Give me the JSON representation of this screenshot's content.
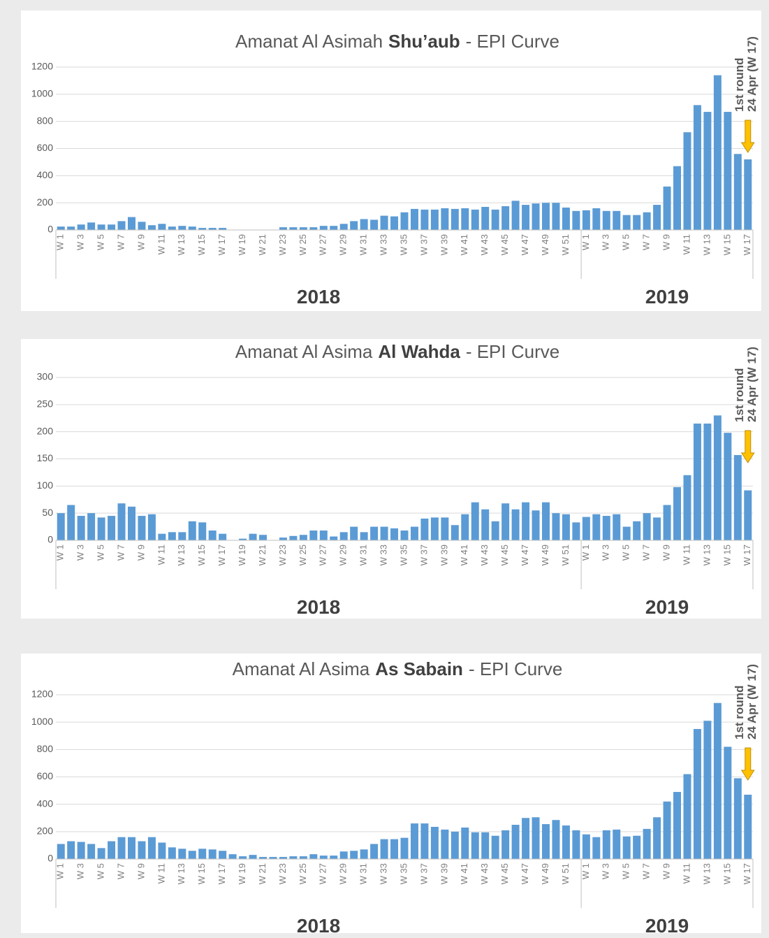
{
  "chart_data": [
    {
      "type": "bar",
      "title": [
        "Amanat Al Asimah",
        "Shu’aub",
        "- EPI Curve"
      ],
      "color": "#5b9bd5",
      "grid": true,
      "annotation": [
        "1st round",
        "24 Apr (W 17)"
      ],
      "groups": [
        "2018",
        "2019"
      ],
      "categories": [
        "W 1",
        null,
        "W 3",
        null,
        "W 5",
        null,
        "W 7",
        null,
        "W 9",
        null,
        "W 11",
        null,
        "W 13",
        null,
        "W 15",
        null,
        "W 17",
        null,
        "W 19",
        null,
        "W 21",
        null,
        "W 23",
        null,
        "W 25",
        null,
        "W 27",
        null,
        "W 29",
        null,
        "W 31",
        null,
        "W 33",
        null,
        "W 35",
        null,
        "W 37",
        null,
        "W 39",
        null,
        "W 41",
        null,
        "W 43",
        null,
        "W 45",
        null,
        "W 47",
        null,
        "W 49",
        null,
        "W 51",
        null,
        "W 1",
        null,
        "W 3",
        null,
        "W 5",
        null,
        "W 7",
        null,
        "W 9",
        null,
        "W 11",
        null,
        "W 13",
        null,
        "W 15",
        null,
        "W 17"
      ],
      "values": [
        25,
        25,
        40,
        55,
        40,
        40,
        65,
        95,
        60,
        35,
        45,
        25,
        30,
        25,
        15,
        15,
        15,
        0,
        0,
        0,
        0,
        0,
        20,
        20,
        20,
        20,
        30,
        30,
        45,
        65,
        80,
        75,
        105,
        100,
        130,
        155,
        150,
        150,
        160,
        155,
        160,
        150,
        170,
        150,
        175,
        215,
        185,
        195,
        200,
        200,
        165,
        140,
        145,
        160,
        140,
        140,
        110,
        110,
        130,
        185,
        320,
        470,
        720,
        920,
        870,
        1140,
        870,
        560,
        520
      ],
      "ylim": [
        0,
        1200
      ],
      "yticks": [
        0,
        200,
        400,
        600,
        800,
        1000,
        1200
      ]
    },
    {
      "type": "bar",
      "title": [
        "Amanat Al Asima",
        "Al Wahda",
        "- EPI Curve"
      ],
      "color": "#5b9bd5",
      "grid": true,
      "annotation": [
        "1st round",
        "24 Apr (W 17)"
      ],
      "groups": [
        "2018",
        "2019"
      ],
      "categories": [
        "W 1",
        null,
        "W 3",
        null,
        "W 5",
        null,
        "W 7",
        null,
        "W 9",
        null,
        "W 11",
        null,
        "W 13",
        null,
        "W 15",
        null,
        "W 17",
        null,
        "W 19",
        null,
        "W 21",
        null,
        "W 23",
        null,
        "W 25",
        null,
        "W 27",
        null,
        "W 29",
        null,
        "W 31",
        null,
        "W 33",
        null,
        "W 35",
        null,
        "W 37",
        null,
        "W 39",
        null,
        "W 41",
        null,
        "W 43",
        null,
        "W 45",
        null,
        "W 47",
        null,
        "W 49",
        null,
        "W 51",
        null,
        "W 1",
        null,
        "W 3",
        null,
        "W 5",
        null,
        "W 7",
        null,
        "W 9",
        null,
        "W 11",
        null,
        "W 13",
        null,
        "W 15",
        null,
        "W 17"
      ],
      "values": [
        50,
        65,
        45,
        50,
        42,
        45,
        68,
        62,
        45,
        48,
        12,
        15,
        15,
        35,
        33,
        18,
        12,
        0,
        3,
        12,
        10,
        0,
        5,
        8,
        10,
        18,
        18,
        7,
        15,
        25,
        15,
        25,
        25,
        22,
        18,
        25,
        40,
        42,
        42,
        28,
        48,
        70,
        57,
        35,
        68,
        57,
        70,
        55,
        70,
        50,
        48,
        33,
        43,
        48,
        45,
        48,
        25,
        35,
        50,
        42,
        65,
        98,
        120,
        215,
        215,
        230,
        198,
        157,
        92
      ],
      "ylim": [
        0,
        300
      ],
      "yticks": [
        0,
        50,
        100,
        150,
        200,
        250,
        300
      ]
    },
    {
      "type": "bar",
      "title": [
        "Amanat Al Asima",
        "As Sabain",
        "- EPI Curve"
      ],
      "color": "#5b9bd5",
      "grid": true,
      "annotation": [
        "1st round",
        "24 Apr (W 17)"
      ],
      "groups": [
        "2018",
        "2019"
      ],
      "categories": [
        "W 1",
        null,
        "W 3",
        null,
        "W 5",
        null,
        "W 7",
        null,
        "W 9",
        null,
        "W 11",
        null,
        "W 13",
        null,
        "W 15",
        null,
        "W 17",
        null,
        "W 19",
        null,
        "W 21",
        null,
        "W 23",
        null,
        "W 25",
        null,
        "W 27",
        null,
        "W 29",
        null,
        "W 31",
        null,
        "W 33",
        null,
        "W 35",
        null,
        "W 37",
        null,
        "W 39",
        null,
        "W 41",
        null,
        "W 43",
        null,
        "W 45",
        null,
        "W 47",
        null,
        "W 49",
        null,
        "W 51",
        null,
        "W 1",
        null,
        "W 3",
        null,
        "W 5",
        null,
        "W 7",
        null,
        "W 9",
        null,
        "W 11",
        null,
        "W 13",
        null,
        "W 15",
        null,
        "W 17"
      ],
      "values": [
        110,
        130,
        125,
        110,
        80,
        130,
        160,
        160,
        130,
        160,
        120,
        85,
        75,
        60,
        75,
        70,
        60,
        35,
        20,
        30,
        15,
        15,
        15,
        20,
        20,
        35,
        25,
        25,
        55,
        60,
        70,
        110,
        145,
        145,
        155,
        260,
        260,
        235,
        215,
        200,
        230,
        195,
        195,
        170,
        210,
        250,
        300,
        305,
        255,
        285,
        245,
        210,
        180,
        160,
        210,
        215,
        165,
        170,
        220,
        305,
        420,
        490,
        620,
        950,
        1010,
        1140,
        820,
        590,
        470
      ],
      "ylim": [
        0,
        1200
      ],
      "yticks": [
        0,
        200,
        400,
        600,
        800,
        1000,
        1200
      ]
    }
  ]
}
